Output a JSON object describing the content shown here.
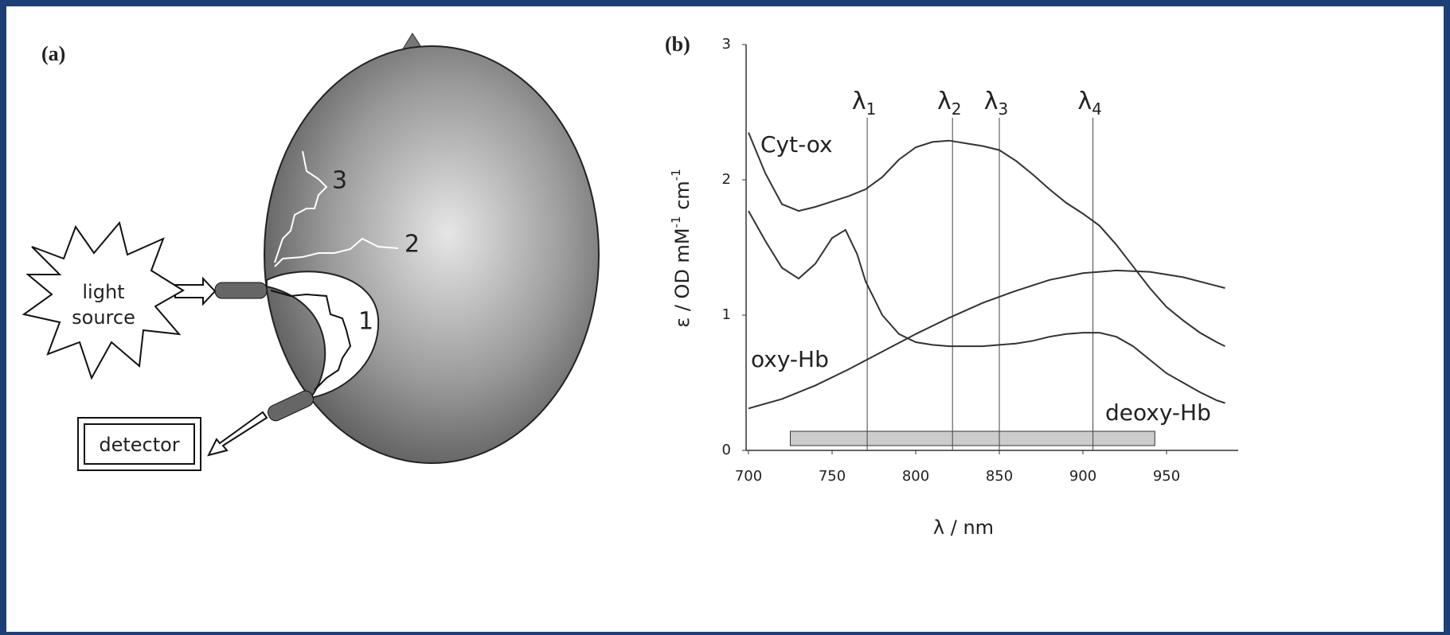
{
  "panel_a": {
    "label": "(a)",
    "source_lines": [
      "light",
      "source"
    ],
    "detector": "detector",
    "paths": [
      "1",
      "2",
      "3"
    ]
  },
  "chart_data": {
    "type": "line",
    "panel_label": "(b)",
    "xlabel": "λ / nm",
    "ylabel_parts": [
      "ε / OD mM",
      "-1",
      " cm",
      "-1"
    ],
    "xlim": [
      700,
      990
    ],
    "xticks": [
      700,
      750,
      800,
      850,
      900,
      950
    ],
    "ylim": [
      0,
      3
    ],
    "yticks": [
      0,
      1,
      2,
      3
    ],
    "color": "#333333",
    "series": [
      {
        "name": "Cyt-ox",
        "x": [
          700,
          710,
          720,
          730,
          740,
          750,
          760,
          770,
          780,
          790,
          800,
          810,
          820,
          830,
          840,
          850,
          860,
          870,
          880,
          890,
          900,
          910,
          920,
          930,
          940,
          950,
          960,
          970,
          980,
          985
        ],
        "values": [
          2.35,
          2.05,
          1.82,
          1.77,
          1.8,
          1.84,
          1.88,
          1.93,
          2.02,
          2.15,
          2.24,
          2.28,
          2.29,
          2.27,
          2.25,
          2.22,
          2.14,
          2.04,
          1.93,
          1.83,
          1.75,
          1.66,
          1.52,
          1.36,
          1.2,
          1.06,
          0.96,
          0.87,
          0.8,
          0.77
        ]
      },
      {
        "name": "oxy-Hb",
        "x": [
          700,
          720,
          740,
          760,
          780,
          800,
          820,
          840,
          860,
          880,
          900,
          920,
          940,
          960,
          985
        ],
        "values": [
          0.31,
          0.38,
          0.48,
          0.6,
          0.73,
          0.86,
          0.98,
          1.09,
          1.18,
          1.26,
          1.31,
          1.33,
          1.32,
          1.28,
          1.2
        ]
      },
      {
        "name": "deoxy-Hb",
        "x": [
          700,
          710,
          720,
          730,
          740,
          750,
          758,
          765,
          770,
          780,
          790,
          800,
          810,
          820,
          830,
          840,
          850,
          860,
          870,
          880,
          890,
          900,
          910,
          920,
          930,
          940,
          950,
          960,
          970,
          980,
          985
        ],
        "values": [
          1.77,
          1.55,
          1.35,
          1.27,
          1.38,
          1.57,
          1.63,
          1.45,
          1.25,
          1.0,
          0.86,
          0.8,
          0.78,
          0.77,
          0.77,
          0.77,
          0.78,
          0.79,
          0.81,
          0.84,
          0.86,
          0.87,
          0.87,
          0.84,
          0.77,
          0.67,
          0.57,
          0.5,
          0.43,
          0.37,
          0.35
        ]
      }
    ],
    "wavelengths": [
      {
        "symbol": "λ",
        "index": "1",
        "value": 771
      },
      {
        "symbol": "λ",
        "index": "2",
        "value": 822
      },
      {
        "symbol": "λ",
        "index": "3",
        "value": 850
      },
      {
        "symbol": "λ",
        "index": "4",
        "value": 906
      }
    ],
    "band": [
      725,
      943
    ]
  }
}
